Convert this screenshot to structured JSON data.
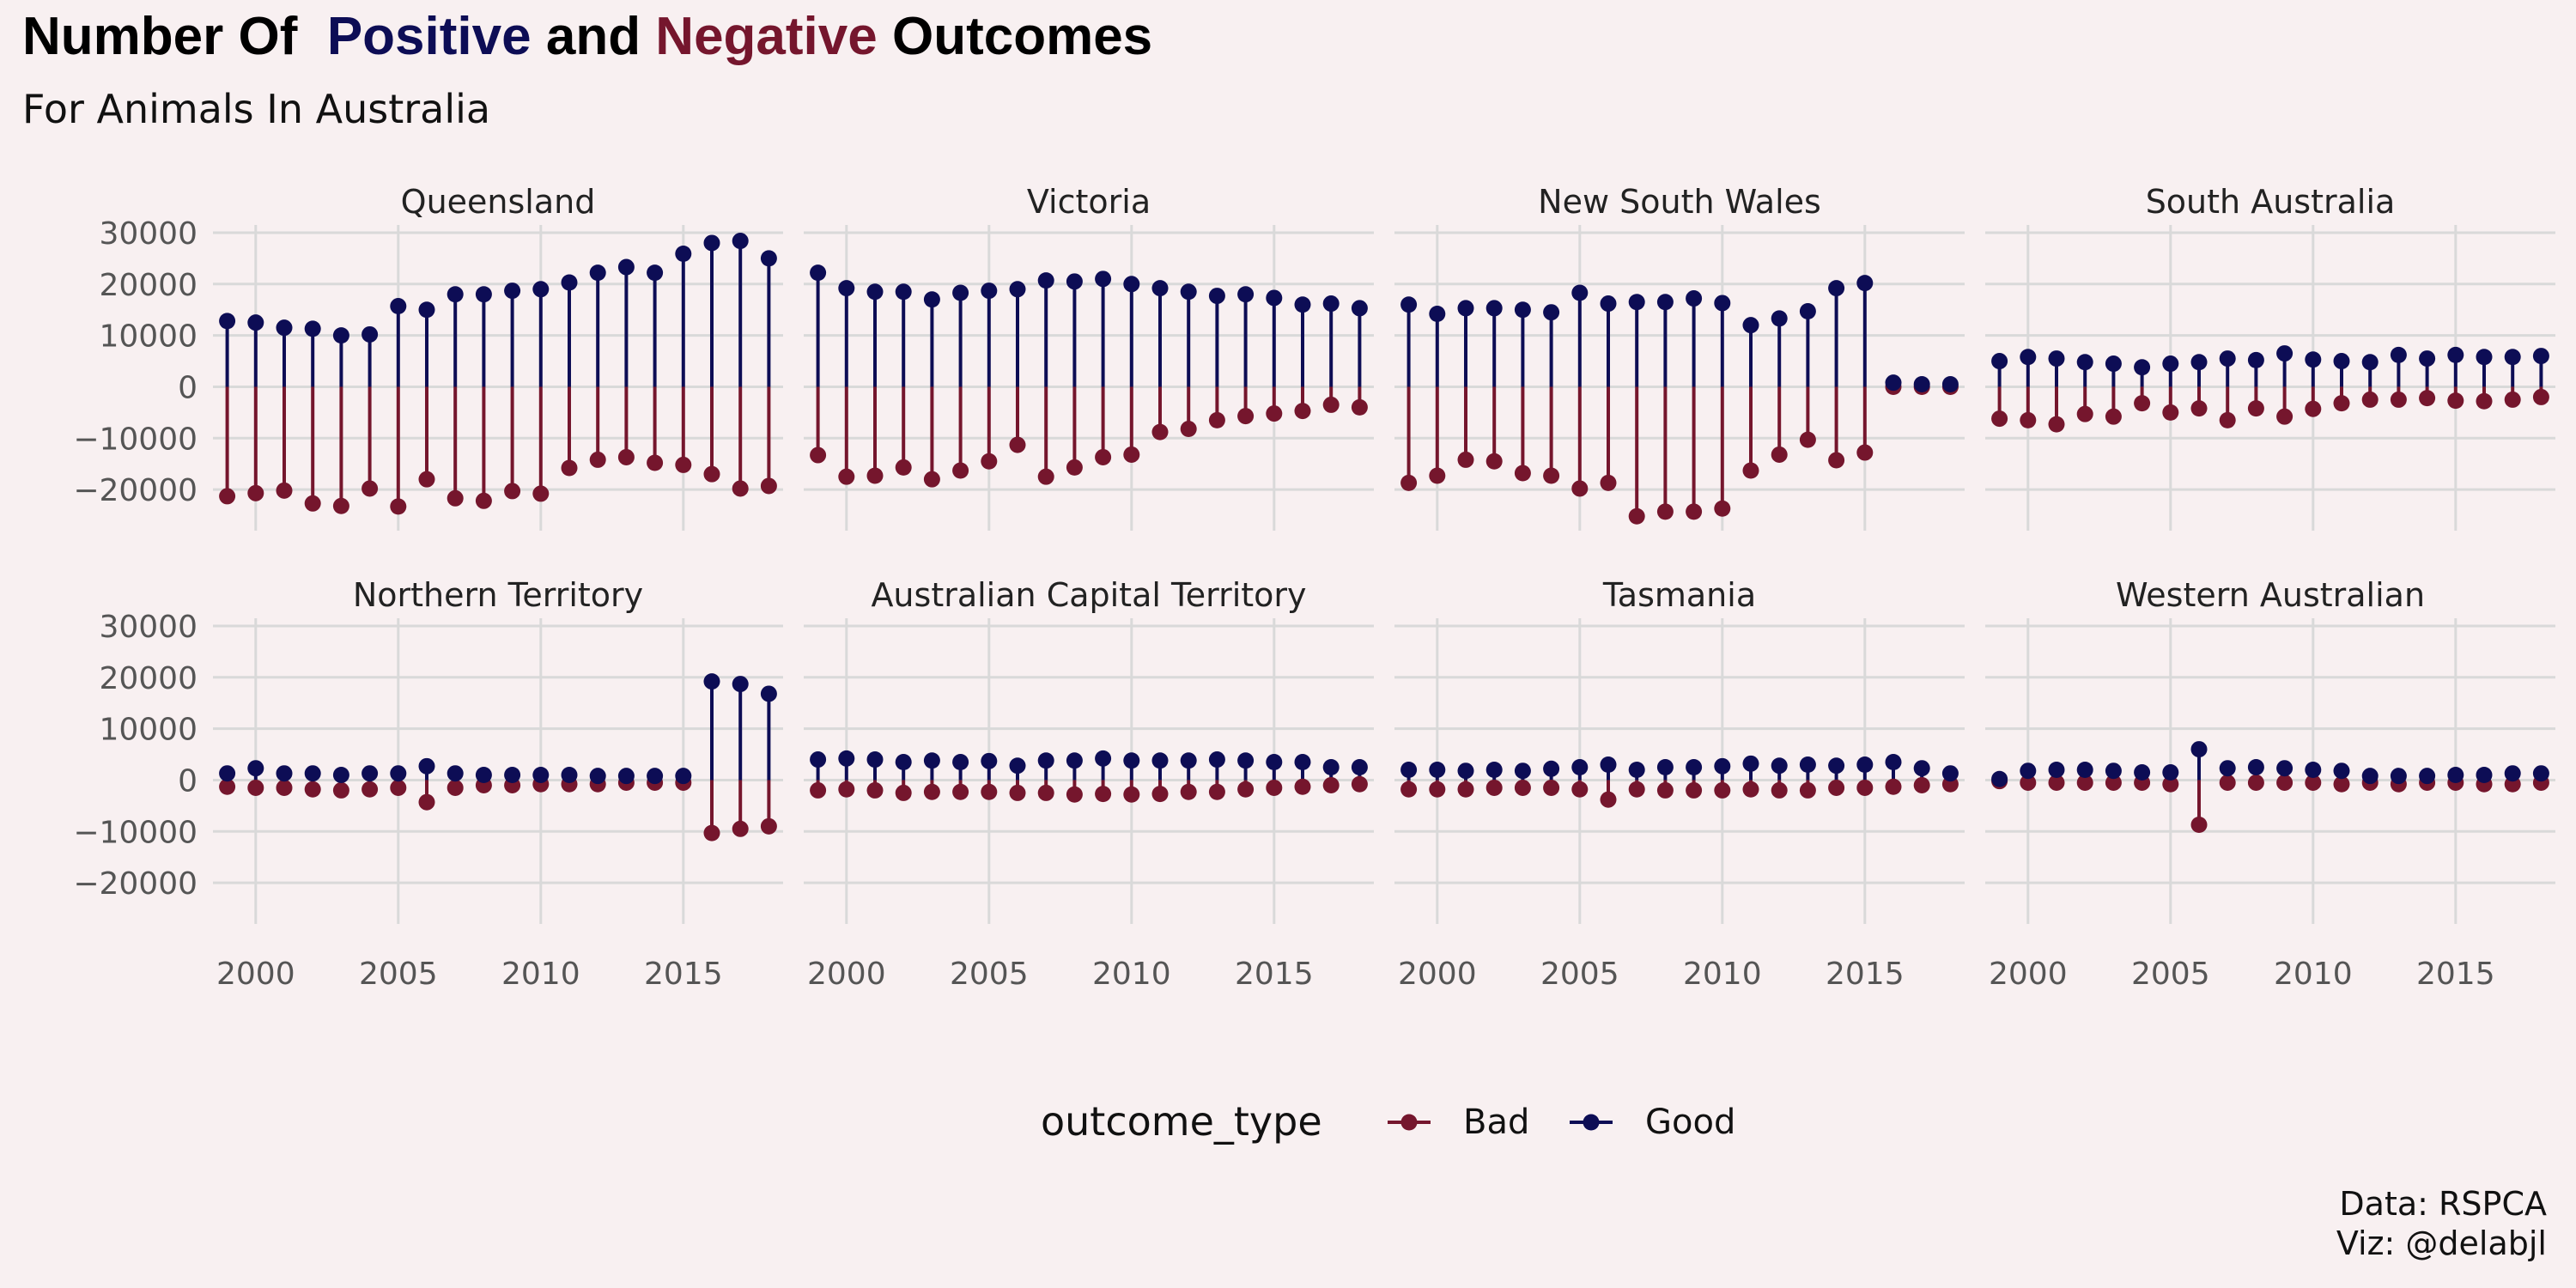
{
  "title": {
    "part1": "Number Of ",
    "positive": "Positive",
    "and": " and ",
    "negative": "Negative",
    "part2": " Outcomes"
  },
  "subtitle": "For Animals In Australia",
  "caption": {
    "line1": "Data: RSPCA",
    "line2": "Viz: @delabjl"
  },
  "colors": {
    "good": "#0d0d55",
    "bad": "#75162d",
    "grid": "#d9d9d9",
    "background": "#f8f0f1",
    "text": "#555555"
  },
  "chart_data": {
    "type": "lollipop",
    "grid": true,
    "legend_position": "bottom",
    "legend": {
      "title": "outcome_type",
      "entries": [
        "Bad",
        "Good"
      ]
    },
    "x": [
      1999,
      2000,
      2001,
      2002,
      2003,
      2004,
      2005,
      2006,
      2007,
      2008,
      2009,
      2010,
      2011,
      2012,
      2013,
      2014,
      2015,
      2016,
      2017,
      2018
    ],
    "xlim": [
      1998.5,
      2018.5
    ],
    "x_ticks": [
      2000,
      2005,
      2010,
      2015
    ],
    "ylim": [
      -28000,
      31500
    ],
    "y_ticks": [
      30000,
      20000,
      10000,
      0,
      -10000,
      -20000
    ],
    "y_tick_labels": [
      "30000",
      "20000",
      "10000",
      "0",
      "−10000",
      "−20000"
    ],
    "panels": [
      {
        "name": "Queensland",
        "good": [
          12800,
          12500,
          11500,
          11300,
          10000,
          10200,
          15700,
          15000,
          18000,
          18000,
          18700,
          19000,
          20300,
          22200,
          23300,
          22200,
          25900,
          28000,
          28400,
          25000
        ],
        "bad": [
          -21300,
          -20700,
          -20200,
          -22700,
          -23200,
          -19800,
          -23300,
          -18000,
          -21700,
          -22200,
          -20300,
          -20800,
          -15800,
          -14200,
          -13700,
          -14800,
          -15200,
          -17000,
          -19800,
          -19300
        ]
      },
      {
        "name": "Victoria",
        "good": [
          22200,
          19200,
          18500,
          18500,
          17000,
          18300,
          18700,
          19000,
          20700,
          20500,
          21000,
          20000,
          19200,
          18500,
          17700,
          18000,
          17300,
          16000,
          16200,
          15300
        ],
        "bad": [
          -13300,
          -17500,
          -17300,
          -15700,
          -18000,
          -16300,
          -14500,
          -11300,
          -17500,
          -15700,
          -13700,
          -13200,
          -8800,
          -8200,
          -6500,
          -5700,
          -5200,
          -4700,
          -3500,
          -4000
        ]
      },
      {
        "name": "New South Wales",
        "good": [
          16000,
          14200,
          15300,
          15300,
          15000,
          14500,
          18300,
          16200,
          16500,
          16500,
          17200,
          16300,
          12000,
          13300,
          14700,
          19200,
          20200,
          800,
          500,
          500
        ],
        "bad": [
          -18700,
          -17300,
          -14200,
          -14500,
          -16800,
          -17300,
          -19800,
          -18700,
          -25200,
          -24300,
          -24300,
          -23700,
          -16300,
          -13200,
          -10300,
          -14300,
          -12800,
          0,
          0,
          0
        ]
      },
      {
        "name": "South Australia",
        "good": [
          5000,
          5800,
          5500,
          4800,
          4500,
          3800,
          4500,
          4800,
          5500,
          5200,
          6500,
          5300,
          5000,
          4800,
          6200,
          5500,
          6200,
          5800,
          5800,
          6000
        ],
        "bad": [
          -6200,
          -6500,
          -7300,
          -5300,
          -5800,
          -3200,
          -5000,
          -4200,
          -6500,
          -4200,
          -5800,
          -4300,
          -3200,
          -2500,
          -2500,
          -2200,
          -2700,
          -2800,
          -2500,
          -2000
        ]
      },
      {
        "name": "Northern Territory",
        "good": [
          1300,
          2300,
          1300,
          1300,
          1000,
          1300,
          1300,
          2700,
          1300,
          1000,
          1000,
          1000,
          1000,
          800,
          800,
          800,
          800,
          19200,
          18700,
          16800
        ],
        "bad": [
          -1300,
          -1500,
          -1500,
          -1800,
          -2000,
          -1800,
          -1500,
          -4300,
          -1500,
          -1000,
          -1000,
          -800,
          -800,
          -800,
          -500,
          -500,
          -500,
          -10300,
          -9500,
          -9000
        ]
      },
      {
        "name": "Australian Capital Territory",
        "good": [
          4000,
          4200,
          4000,
          3500,
          3800,
          3500,
          3700,
          2800,
          3800,
          3800,
          4200,
          3800,
          3800,
          3800,
          4000,
          3800,
          3500,
          3500,
          2500,
          2500
        ],
        "bad": [
          -2000,
          -1800,
          -2000,
          -2500,
          -2300,
          -2300,
          -2300,
          -2500,
          -2500,
          -2800,
          -2700,
          -2800,
          -2700,
          -2300,
          -2300,
          -1800,
          -1500,
          -1300,
          -1000,
          -800
        ]
      },
      {
        "name": "Tasmania",
        "good": [
          2000,
          2000,
          1800,
          2000,
          1800,
          2200,
          2500,
          3000,
          2000,
          2500,
          2500,
          2700,
          3200,
          2800,
          3000,
          2800,
          3000,
          3500,
          2300,
          1300
        ],
        "bad": [
          -1800,
          -1800,
          -1800,
          -1500,
          -1500,
          -1500,
          -1800,
          -3800,
          -1800,
          -2000,
          -2000,
          -2000,
          -1800,
          -2000,
          -2000,
          -1500,
          -1500,
          -1300,
          -1000,
          -800
        ]
      },
      {
        "name": "Western Australian",
        "good": [
          200,
          1800,
          2000,
          2000,
          1800,
          1500,
          1500,
          6000,
          2300,
          2500,
          2300,
          2000,
          1800,
          800,
          800,
          800,
          1000,
          1000,
          1300,
          1300
        ],
        "bad": [
          -200,
          -500,
          -500,
          -500,
          -500,
          -500,
          -800,
          -8700,
          -500,
          -500,
          -500,
          -500,
          -800,
          -500,
          -800,
          -500,
          -500,
          -800,
          -800,
          -500
        ]
      }
    ]
  }
}
